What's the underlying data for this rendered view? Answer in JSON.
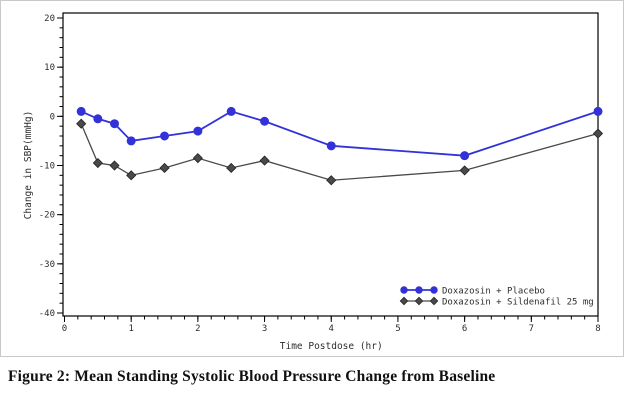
{
  "figure": {
    "caption": "Figure 2: Mean Standing Systolic Blood Pressure Change from Baseline"
  },
  "chart_data": {
    "type": "line",
    "title": "",
    "xlabel": "Time Postdose (hr)",
    "ylabel": "Change in SBP(mmHg)",
    "xlim": [
      0,
      8
    ],
    "ylim": [
      -40,
      20
    ],
    "x_major_ticks": [
      0,
      1,
      2,
      3,
      4,
      5,
      6,
      7,
      8
    ],
    "x_minor_step": 0.2,
    "y_major_ticks": [
      20,
      10,
      0,
      -10,
      -20,
      -30,
      -40
    ],
    "y_minor_step": 2,
    "grid": false,
    "legend_position": "inside-bottom-right",
    "x": [
      0.25,
      0.5,
      0.75,
      1,
      1.5,
      2,
      2.5,
      3,
      4,
      6,
      8
    ],
    "series": [
      {
        "name": "Doxazosin + Placebo",
        "color": "#3232d8",
        "marker": "circle",
        "values": [
          1,
          -0.5,
          -1.5,
          -5,
          -4,
          -3,
          1,
          -1,
          -6,
          -8,
          1
        ]
      },
      {
        "name": "Doxazosin + Sildenafil 25 mg",
        "color": "#4a4a4a",
        "marker": "diamond",
        "values": [
          -1.5,
          -9.5,
          -10,
          -12,
          -10.5,
          -8.5,
          -10.5,
          -9,
          -13,
          -11,
          -3.5
        ]
      }
    ],
    "axis_color": "#000000",
    "text_color": "#2d2d2d"
  }
}
